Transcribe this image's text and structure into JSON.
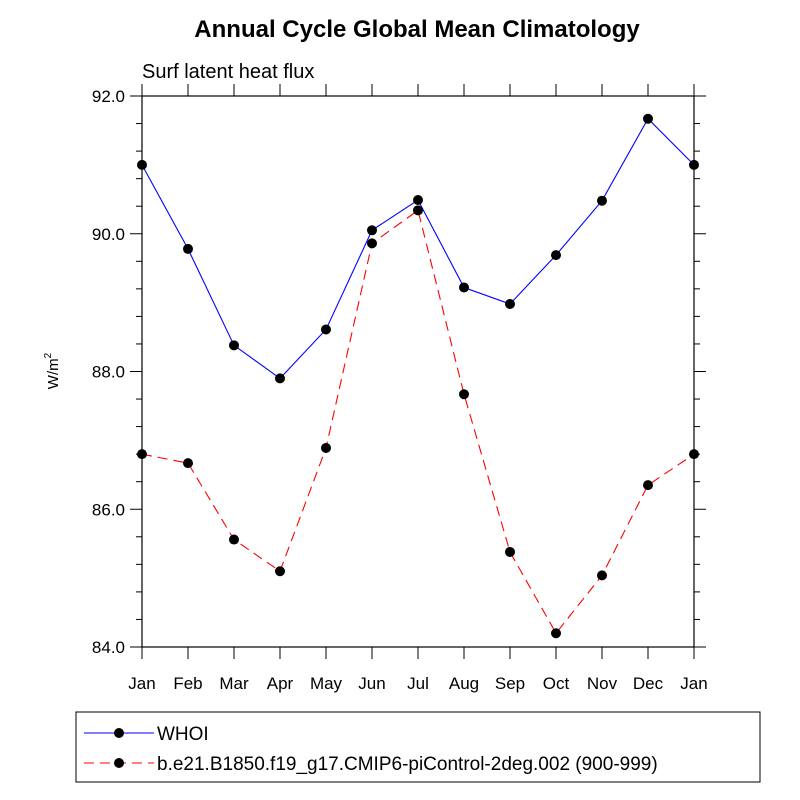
{
  "chart_data": {
    "type": "line",
    "title": "Annual Cycle Global Mean Climatology",
    "subtitle": "Surf latent heat flux",
    "ylabel": "W/m",
    "ylabel_superscript": "2",
    "xlabel": "",
    "categories": [
      "Jan",
      "Feb",
      "Mar",
      "Apr",
      "May",
      "Jun",
      "Jul",
      "Aug",
      "Sep",
      "Oct",
      "Nov",
      "Dec",
      "Jan"
    ],
    "ylim": [
      84.0,
      92.0
    ],
    "y_ticks": [
      84.0,
      86.0,
      88.0,
      90.0,
      92.0
    ],
    "y_tick_labels": [
      "84.0",
      "86.0",
      "88.0",
      "90.0",
      "92.0"
    ],
    "grid": false,
    "legend_position": "bottom",
    "series": [
      {
        "name": "WHOI",
        "color": "#0000ff",
        "line_style": "solid",
        "marker": "filled-circle",
        "values": [
          91.0,
          89.78,
          88.38,
          87.9,
          88.61,
          90.05,
          90.49,
          89.22,
          88.98,
          89.69,
          90.48,
          91.67,
          91.0
        ]
      },
      {
        "name": "b.e21.B1850.f19_g17.CMIP6-piControl-2deg.002 (900-999)",
        "color": "#ff0000",
        "line_style": "dashed",
        "marker": "filled-circle",
        "values": [
          86.8,
          86.67,
          85.56,
          85.1,
          86.89,
          89.86,
          90.34,
          87.67,
          85.38,
          84.2,
          85.04,
          86.35,
          86.8
        ]
      }
    ]
  }
}
